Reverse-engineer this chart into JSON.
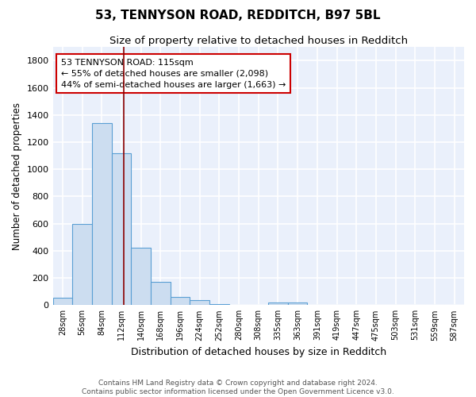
{
  "title": "53, TENNYSON ROAD, REDDITCH, B97 5BL",
  "subtitle": "Size of property relative to detached houses in Redditch",
  "xlabel": "Distribution of detached houses by size in Redditch",
  "ylabel": "Number of detached properties",
  "bin_labels": [
    "28sqm",
    "56sqm",
    "84sqm",
    "112sqm",
    "140sqm",
    "168sqm",
    "196sqm",
    "224sqm",
    "252sqm",
    "280sqm",
    "308sqm",
    "335sqm",
    "363sqm",
    "391sqm",
    "419sqm",
    "447sqm",
    "475sqm",
    "503sqm",
    "531sqm",
    "559sqm",
    "587sqm"
  ],
  "values": [
    55,
    600,
    1340,
    1120,
    420,
    170,
    60,
    35,
    10,
    0,
    0,
    20,
    20,
    0,
    0,
    0,
    0,
    0,
    0,
    0,
    0
  ],
  "bar_color": "#ccddf0",
  "bar_edge_color": "#5a9fd4",
  "bar_linewidth": 0.8,
  "vline_x": 3,
  "vline_color": "#8b0000",
  "vline_linewidth": 1.2,
  "annotation_line1": "53 TENNYSON ROAD: 115sqm",
  "annotation_line2": "← 55% of detached houses are smaller (2,098)",
  "annotation_line3": "44% of semi-detached houses are larger (1,663) →",
  "annotation_box_color": "#ffffff",
  "annotation_box_edge_color": "#cc0000",
  "annotation_fontsize": 8,
  "ylim": [
    0,
    1900
  ],
  "yticks": [
    0,
    200,
    400,
    600,
    800,
    1000,
    1200,
    1400,
    1600,
    1800
  ],
  "bg_color": "#eaf0fb",
  "grid_color": "#ffffff",
  "footer": "Contains HM Land Registry data © Crown copyright and database right 2024.\nContains public sector information licensed under the Open Government Licence v3.0.",
  "title_fontsize": 11,
  "subtitle_fontsize": 9.5,
  "xlabel_fontsize": 9,
  "ylabel_fontsize": 8.5,
  "footer_fontsize": 6.5
}
